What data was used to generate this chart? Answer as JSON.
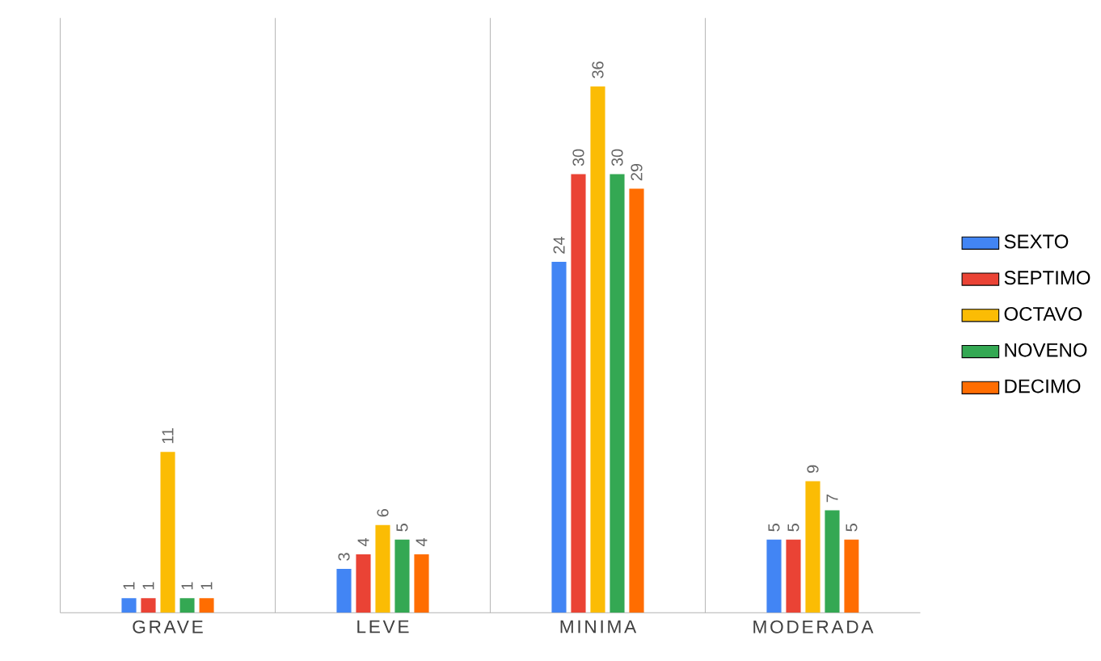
{
  "chart_data": {
    "type": "bar",
    "categories": [
      "GRAVE",
      "LEVE",
      "MINIMA",
      "MODERADA"
    ],
    "series": [
      {
        "name": "SEXTO",
        "color": "#4285f4",
        "values": [
          1,
          3,
          24,
          5
        ]
      },
      {
        "name": "SEPTIMO",
        "color": "#ea4335",
        "values": [
          1,
          4,
          30,
          5
        ]
      },
      {
        "name": "OCTAVO",
        "color": "#fbbc04",
        "values": [
          11,
          6,
          36,
          9
        ]
      },
      {
        "name": "NOVENO",
        "color": "#34a853",
        "values": [
          1,
          5,
          30,
          7
        ]
      },
      {
        "name": "DECIMO",
        "color": "#ff6d01",
        "values": [
          1,
          4,
          29,
          5
        ]
      }
    ],
    "data_labels": true,
    "grid": "x",
    "legend": "right"
  }
}
